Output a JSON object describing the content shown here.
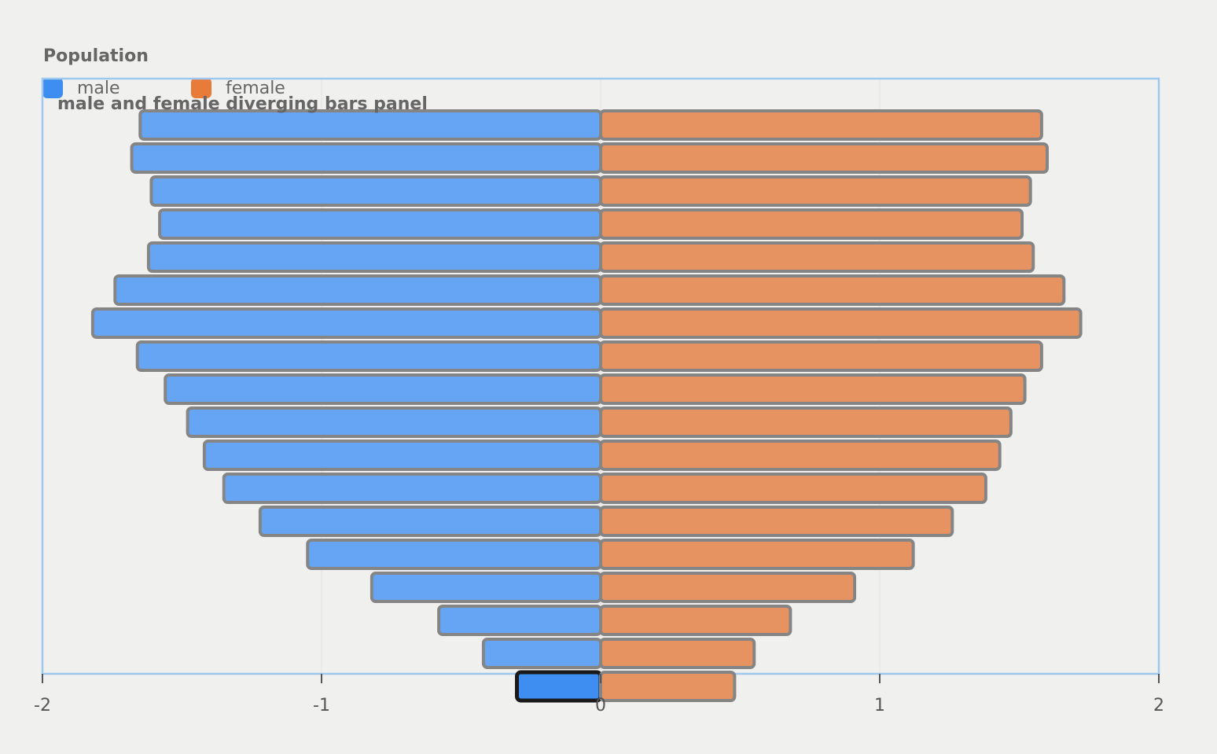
{
  "chart_data": {
    "type": "bar",
    "orientation": "horizontal-diverging",
    "title": "Population",
    "legend": [
      {
        "name": "male",
        "color": "#3d8ef0"
      },
      {
        "name": "female",
        "color": "#e87a3a"
      }
    ],
    "annotation": "male and female diverging bars panel",
    "xlim": [
      -2,
      2
    ],
    "xticks": [
      "-2",
      "-1",
      "0",
      "1",
      "2"
    ],
    "grid": true,
    "series": [
      {
        "name": "male",
        "color": "#3d8ef0",
        "values": [
          -1.65,
          -1.68,
          -1.61,
          -1.58,
          -1.62,
          -1.74,
          -1.82,
          -1.66,
          -1.56,
          -1.48,
          -1.42,
          -1.35,
          -1.22,
          -1.05,
          -0.82,
          -0.58,
          -0.42,
          -0.3
        ]
      },
      {
        "name": "female",
        "color": "#e87a3a",
        "values": [
          1.58,
          1.6,
          1.54,
          1.51,
          1.55,
          1.66,
          1.72,
          1.58,
          1.52,
          1.47,
          1.43,
          1.38,
          1.26,
          1.12,
          0.91,
          0.68,
          0.55,
          0.48
        ]
      }
    ]
  }
}
